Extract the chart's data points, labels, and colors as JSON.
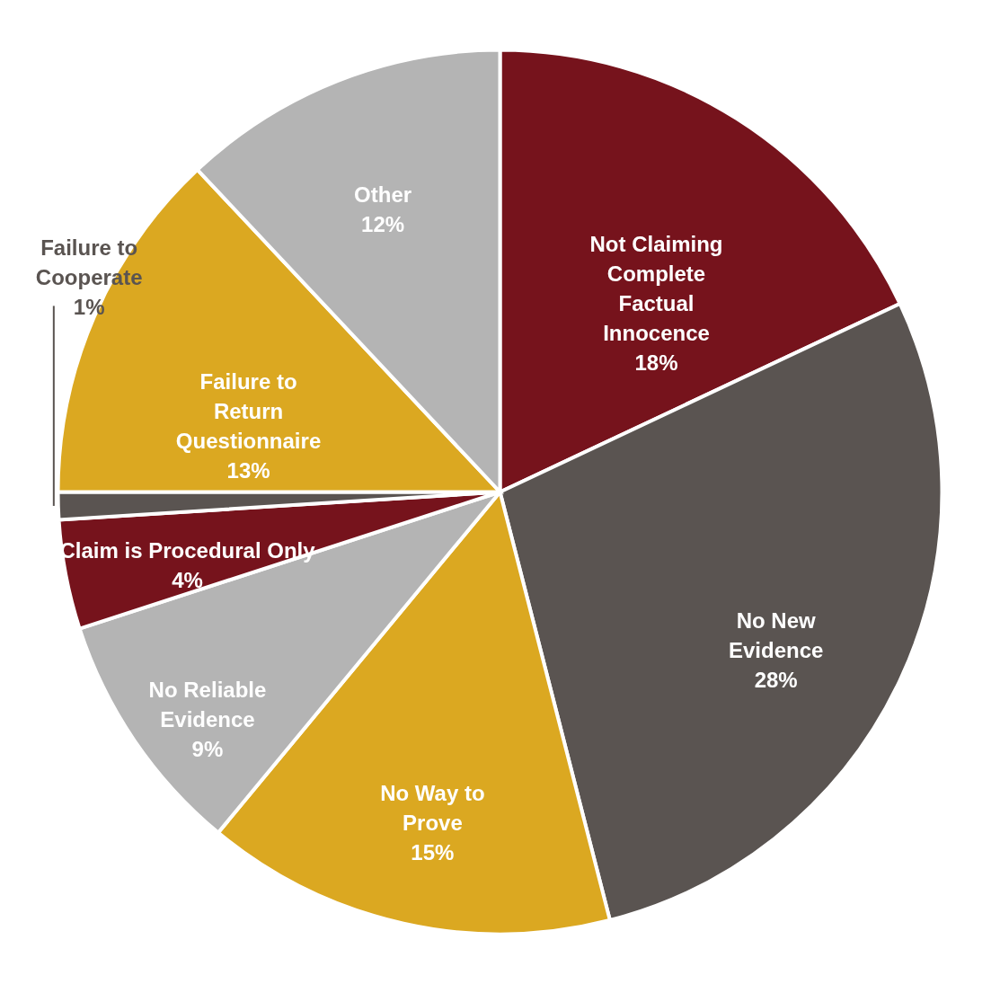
{
  "chart_data": {
    "type": "pie",
    "categories": [
      "Not Claiming Complete Factual Innocence",
      "No New Evidence",
      "No Way to Prove",
      "No Reliable Evidence",
      "Claim is Procedural Only",
      "Failure to Cooperate",
      "Failure to Return Questionnaire",
      "Other"
    ],
    "values": [
      18,
      28,
      15,
      9,
      4,
      1,
      13,
      12
    ],
    "colors": [
      "#76131c",
      "#5a5451",
      "#dba821",
      "#b4b4b4",
      "#76131c",
      "#5a5451",
      "#dba821",
      "#b4b4b4"
    ],
    "value_labels": [
      "18%",
      "28%",
      "15%",
      "9%",
      "4%",
      "1%",
      "13%",
      "12%"
    ]
  }
}
